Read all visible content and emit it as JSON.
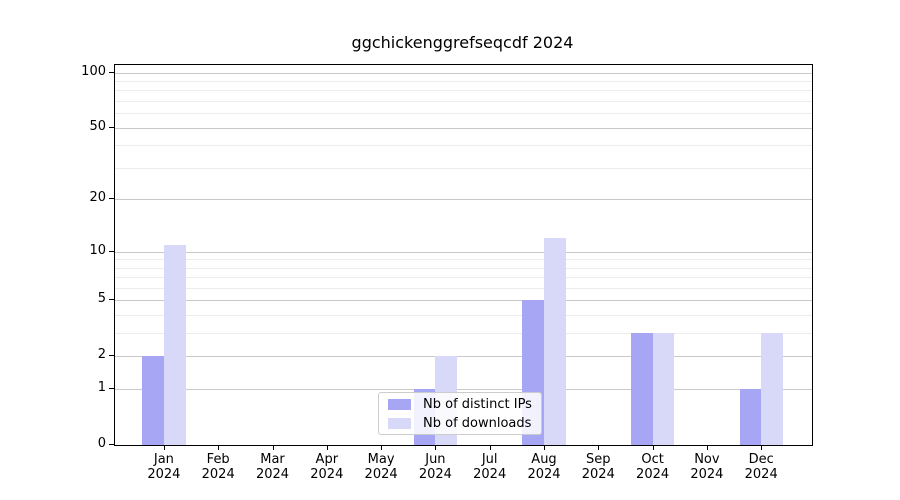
{
  "colors": {
    "distinct_ips": "#a6a6f4",
    "downloads": "#d8d8f8",
    "grid_major": "#c9c9c9",
    "grid_minor": "#ececec",
    "axis": "#000000",
    "legend_border": "#cccccc"
  },
  "chart_data": {
    "type": "bar",
    "title": "ggchickenggrefseqcdf 2024",
    "categories": [
      "Jan 2024",
      "Feb 2024",
      "Mar 2024",
      "Apr 2024",
      "May 2024",
      "Jun 2024",
      "Jul 2024",
      "Aug 2024",
      "Sep 2024",
      "Oct 2024",
      "Nov 2024",
      "Dec 2024"
    ],
    "series": [
      {
        "name": "Nb of distinct IPs",
        "color_key": "distinct_ips",
        "values": [
          2,
          0,
          0,
          0,
          0,
          1,
          0,
          5,
          0,
          3,
          0,
          1
        ]
      },
      {
        "name": "Nb of downloads",
        "color_key": "downloads",
        "values": [
          11,
          0,
          0,
          0,
          0,
          2,
          0,
          12,
          0,
          3,
          0,
          3
        ]
      }
    ],
    "xlabel": "",
    "ylabel": "",
    "yscale": "log1p",
    "ylim": [
      0,
      110
    ],
    "y_major_ticks": [
      0,
      1,
      2,
      5,
      10,
      20,
      50,
      100
    ],
    "y_minor_ticks": [
      3,
      4,
      6,
      7,
      8,
      9,
      30,
      40,
      60,
      70,
      80,
      90
    ],
    "grid": true,
    "legend_position": "lower center inside plot"
  }
}
